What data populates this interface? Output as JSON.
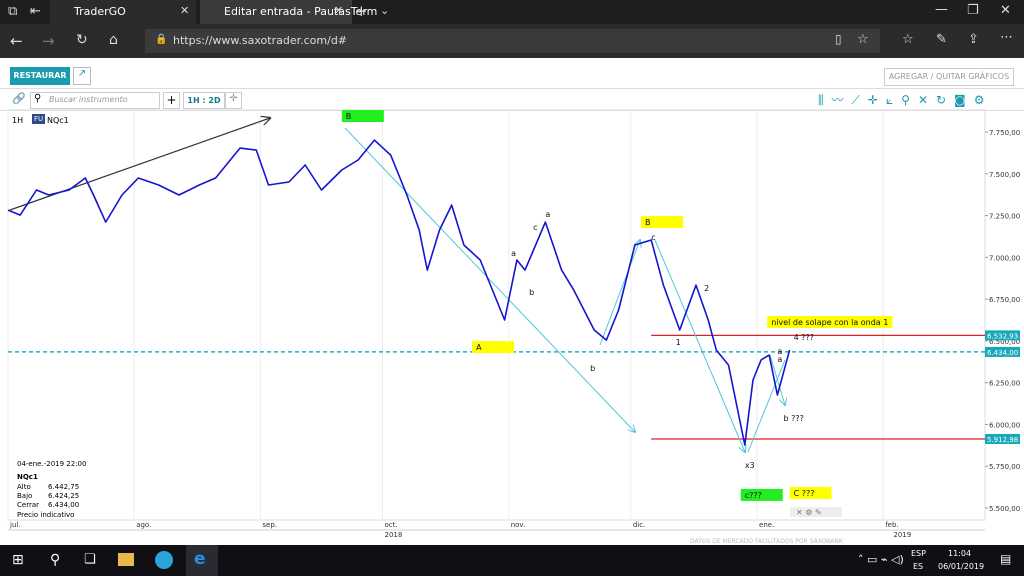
{
  "browser": {
    "tabs": [
      "TraderGO",
      "Editar entrada - PautasTerm"
    ],
    "url": "https://www.saxotrader.com/d#"
  },
  "toolbar": {
    "restore": "RESTAURAR",
    "add_remove": "AGREGAR / QUITAR GRÁFICOS",
    "search_placeholder": "Buscar instrumento",
    "timeframe": "1H : 2D"
  },
  "chart_header": {
    "interval": "1H",
    "badge": "FU",
    "instrument": "NQc1"
  },
  "chart_data": {
    "type": "line",
    "x": [
      0,
      3,
      7,
      10,
      15,
      19,
      21,
      24,
      28,
      32,
      37,
      42,
      47,
      51,
      57,
      61,
      64,
      69,
      73,
      77,
      82,
      86,
      90,
      94,
      98,
      101,
      103,
      106,
      109,
      112,
      116,
      120,
      122,
      125,
      127,
      132,
      136,
      139,
      144,
      147,
      150,
      154,
      158,
      161,
      165,
      169,
      172,
      174,
      177,
      181,
      183,
      185,
      187,
      189,
      192
    ],
    "series": [
      {
        "color": "#1515d0",
        "values": [
          7283,
          7253,
          7403,
          7373,
          7403,
          7475,
          7373,
          7211,
          7373,
          7475,
          7433,
          7373,
          7433,
          7475,
          7654,
          7642,
          7433,
          7451,
          7553,
          7403,
          7523,
          7583,
          7702,
          7612,
          7373,
          7164,
          6924,
          7164,
          7313,
          7074,
          6984,
          6745,
          6625,
          6984,
          6924,
          7211,
          6924,
          6804,
          6565,
          6505,
          6685,
          7074,
          7104,
          6834,
          6565,
          6834,
          6625,
          6445,
          6356,
          5877,
          6266,
          6386,
          6415,
          6176,
          6445
        ]
      }
    ],
    "xlim": [
      0,
      240
    ],
    "xticks": [
      {
        "value": 0,
        "label": "jul."
      },
      {
        "value": 31,
        "label": "ago."
      },
      {
        "value": 62,
        "label": "sep."
      },
      {
        "value": 92,
        "label": "oct."
      },
      {
        "value": 123,
        "label": "nov."
      },
      {
        "value": 153,
        "label": "dic."
      },
      {
        "value": 184,
        "label": "ene."
      },
      {
        "value": 215,
        "label": "feb."
      }
    ],
    "year_ticks": [
      {
        "value": 92,
        "label": "2018"
      },
      {
        "value": 217,
        "label": "2019"
      }
    ],
    "ylim": [
      5428,
      7882
    ],
    "yticks": [
      {
        "value": 5500,
        "label": "5.500,00"
      },
      {
        "value": 5750,
        "label": "5.750,00"
      },
      {
        "value": 6000,
        "label": "6.000,00"
      },
      {
        "value": 6250,
        "label": "6.250,00"
      },
      {
        "value": 6500,
        "label": "6.500,00"
      },
      {
        "value": 6750,
        "label": "6.750,00"
      },
      {
        "value": 7000,
        "label": "7.000,00"
      },
      {
        "value": 7250,
        "label": "7.250,00"
      },
      {
        "value": 7500,
        "label": "7.500,00"
      },
      {
        "value": 7750,
        "label": "7.750,00"
      }
    ],
    "grid": "x",
    "levels": [
      {
        "value": 6532.93,
        "label": "6.532,93",
        "color": "#e02020",
        "x0": 158,
        "dashed": false
      },
      {
        "value": 6434,
        "label": "6.434,00",
        "color": "#18b4c8",
        "x0": 0,
        "dashed": true
      },
      {
        "value": 5912.98,
        "label": "5.912,98",
        "color": "#e02020",
        "x0": 158,
        "dashed": false
      }
    ],
    "annotations": [
      {
        "text": "B",
        "x": 82,
        "y": 7882,
        "box": "#22ee22"
      },
      {
        "text": "A",
        "x": 114,
        "y": 6499,
        "box": "#ffff00"
      },
      {
        "text": "b",
        "x": 143,
        "y": 6373
      },
      {
        "text": "a",
        "x": 123.6,
        "y": 7062
      },
      {
        "text": "c",
        "x": 129,
        "y": 7218
      },
      {
        "text": "a",
        "x": 132,
        "y": 7295
      },
      {
        "text": "b",
        "x": 128,
        "y": 6828
      },
      {
        "text": "B",
        "x": 155.5,
        "y": 7247,
        "box": "#ffff00"
      },
      {
        "text": "c",
        "x": 158,
        "y": 7158
      },
      {
        "text": "1",
        "x": 164,
        "y": 6529
      },
      {
        "text": "2",
        "x": 171,
        "y": 6852
      },
      {
        "text": "x3",
        "x": 181,
        "y": 5793
      },
      {
        "text": "nivel de solape con la onda 1",
        "x": 186.5,
        "y": 6649,
        "box": "#ffff00"
      },
      {
        "text": "4 ???",
        "x": 193,
        "y": 6559
      },
      {
        "text": "a",
        "x": 189,
        "y": 6475
      },
      {
        "text": "a",
        "x": 189,
        "y": 6427
      },
      {
        "text": "b ???",
        "x": 190.5,
        "y": 6074
      },
      {
        "text": "c???",
        "x": 180,
        "y": 5614,
        "box": "#22ee22"
      },
      {
        "text": "C ???",
        "x": 192,
        "y": 5625,
        "box": "#ffff00"
      }
    ]
  },
  "info_box": {
    "datetime": "04-ene.-2019 22:00",
    "instrument": "NQc1",
    "rows": [
      [
        "Alto",
        "6.442,75"
      ],
      [
        "Bajo",
        "6.424,25"
      ],
      [
        "Cerrar",
        "6.434,00"
      ]
    ],
    "note": "Precio indicativo"
  },
  "watermark": "DATOS DE MERCADO FACILITADOS POR SAXOBANK",
  "taskbar": {
    "lang": [
      "ESP",
      "ES"
    ],
    "time": "11:04",
    "date": "06/01/2019"
  }
}
